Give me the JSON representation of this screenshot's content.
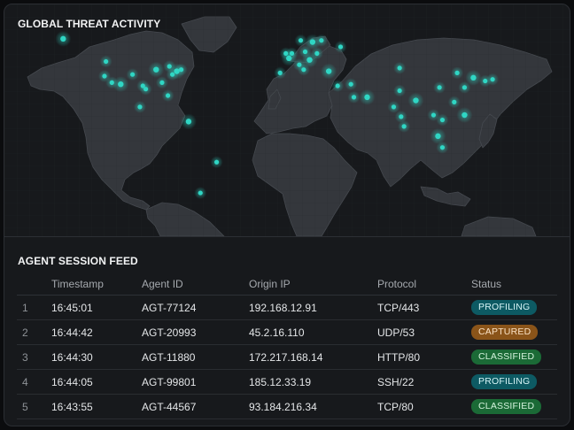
{
  "map": {
    "title": "GLOBAL THREAT ACTIVITY",
    "accent_color": "#2fd6c4",
    "hotspots": [
      {
        "lon": -151,
        "lat": 61
      },
      {
        "lon": -122,
        "lat": 47
      },
      {
        "lon": -123,
        "lat": 38
      },
      {
        "lon": -118,
        "lat": 34
      },
      {
        "lon": -112,
        "lat": 33
      },
      {
        "lon": -104,
        "lat": 39
      },
      {
        "lon": -97,
        "lat": 32
      },
      {
        "lon": -95,
        "lat": 30
      },
      {
        "lon": -88,
        "lat": 42
      },
      {
        "lon": -84,
        "lat": 34
      },
      {
        "lon": -80,
        "lat": 26
      },
      {
        "lon": -77,
        "lat": 39
      },
      {
        "lon": -74,
        "lat": 41
      },
      {
        "lon": -71,
        "lat": 42
      },
      {
        "lon": -79,
        "lat": 44
      },
      {
        "lon": -99,
        "lat": 19
      },
      {
        "lon": -66,
        "lat": 10
      },
      {
        "lon": -47,
        "lat": -15
      },
      {
        "lon": -58,
        "lat": -34
      },
      {
        "lon": -0.1,
        "lat": 52
      },
      {
        "lon": 2,
        "lat": 49
      },
      {
        "lon": 4,
        "lat": 52
      },
      {
        "lon": 13,
        "lat": 53
      },
      {
        "lon": 10,
        "lat": 60
      },
      {
        "lon": 18,
        "lat": 59
      },
      {
        "lon": 24,
        "lat": 60
      },
      {
        "lon": 37,
        "lat": 56
      },
      {
        "lon": 21,
        "lat": 52
      },
      {
        "lon": 16,
        "lat": 48
      },
      {
        "lon": 9,
        "lat": 45
      },
      {
        "lon": -4,
        "lat": 40
      },
      {
        "lon": 12,
        "lat": 42
      },
      {
        "lon": 29,
        "lat": 41
      },
      {
        "lon": 35,
        "lat": 32
      },
      {
        "lon": 44,
        "lat": 33
      },
      {
        "lon": 46,
        "lat": 25
      },
      {
        "lon": 55,
        "lat": 25
      },
      {
        "lon": 77,
        "lat": 29
      },
      {
        "lon": 73,
        "lat": 19
      },
      {
        "lon": 78,
        "lat": 13
      },
      {
        "lon": 88,
        "lat": 23
      },
      {
        "lon": 80,
        "lat": 7
      },
      {
        "lon": 100,
        "lat": 14
      },
      {
        "lon": 106,
        "lat": 11
      },
      {
        "lon": 103,
        "lat": 1
      },
      {
        "lon": 114,
        "lat": 22
      },
      {
        "lon": 121,
        "lat": 31
      },
      {
        "lon": 116,
        "lat": 40
      },
      {
        "lon": 127,
        "lat": 37
      },
      {
        "lon": 135,
        "lat": 35
      },
      {
        "lon": 140,
        "lat": 36
      },
      {
        "lon": 104,
        "lat": 31
      },
      {
        "lon": 121,
        "lat": 14
      },
      {
        "lon": 106,
        "lat": -6
      },
      {
        "lon": 77,
        "lat": 43
      }
    ]
  },
  "feed": {
    "title": "AGENT SESSION FEED",
    "columns": [
      "",
      "Timestamp",
      "Agent ID",
      "Origin IP",
      "Protocol",
      "Status"
    ],
    "rows": [
      {
        "idx": "1",
        "timestamp": "16:45:01",
        "agent_id": "AGT-77124",
        "origin_ip": "192.168.12.91",
        "protocol": "TCP/443",
        "status": "PROFILING"
      },
      {
        "idx": "2",
        "timestamp": "16:44:42",
        "agent_id": "AGT-20993",
        "origin_ip": "45.2.16.110",
        "protocol": "UDP/53",
        "status": "CAPTURED"
      },
      {
        "idx": "3",
        "timestamp": "16:44:30",
        "agent_id": "AGT-11880",
        "origin_ip": "172.217.168.14",
        "protocol": "HTTP/80",
        "status": "CLASSIFIED"
      },
      {
        "idx": "4",
        "timestamp": "16:44:05",
        "agent_id": "AGT-99801",
        "origin_ip": "185.12.33.19",
        "protocol": "SSH/22",
        "status": "PROFILING"
      },
      {
        "idx": "5",
        "timestamp": "16:43:55",
        "agent_id": "AGT-44567",
        "origin_ip": "93.184.216.34",
        "protocol": "TCP/80",
        "status": "CLASSIFIED"
      }
    ],
    "status_colors": {
      "PROFILING": "#0d5a63",
      "CAPTURED": "#8a5419",
      "CLASSIFIED": "#1b6a36"
    }
  }
}
